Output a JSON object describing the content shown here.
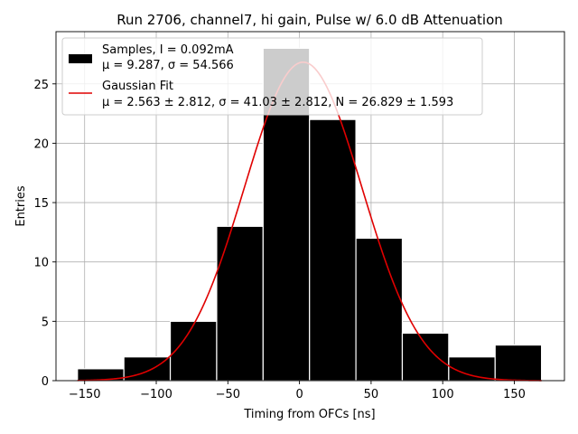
{
  "chart_data": {
    "type": "bar",
    "title": "Run 2706, channel7, hi gain, Pulse w/ 6.0 dB Attenuation",
    "xlabel": "Timing from OFCs [ns]",
    "ylabel": "Entries",
    "xlim": [
      -170,
      185
    ],
    "ylim": [
      0,
      29.4
    ],
    "xticks": [
      -150,
      -100,
      -50,
      0,
      50,
      100,
      150
    ],
    "xtick_labels": [
      "−150",
      "−100",
      "−50",
      "0",
      "50",
      "100",
      "150"
    ],
    "yticks": [
      0,
      5,
      10,
      15,
      20,
      25
    ],
    "yticks_labels": [
      "0",
      "5",
      "10",
      "15",
      "20",
      "25"
    ],
    "grid": true,
    "bin_edges": [
      -155,
      -122.6,
      -90.2,
      -57.8,
      -25.4,
      7.0,
      39.4,
      71.8,
      104.2,
      136.6,
      169.0
    ],
    "counts": [
      1,
      2,
      5,
      13,
      28,
      22,
      12,
      4,
      2,
      3
    ],
    "series": [
      {
        "name": "Samples, I = 0.092mA",
        "name_line2": "μ = 9.287, σ = 54.566",
        "color": "#000000",
        "edge_color": "#ffffff"
      },
      {
        "name": "Gaussian Fit",
        "name_line2": "μ = 2.563 ± 2.812, σ = 41.03 ± 2.812, N = 26.829 ± 1.593",
        "color": "#e00000",
        "fit": {
          "mu": 2.563,
          "sigma": 41.03,
          "amplitude": 26.829
        }
      }
    ],
    "legend_position": "top-left"
  }
}
